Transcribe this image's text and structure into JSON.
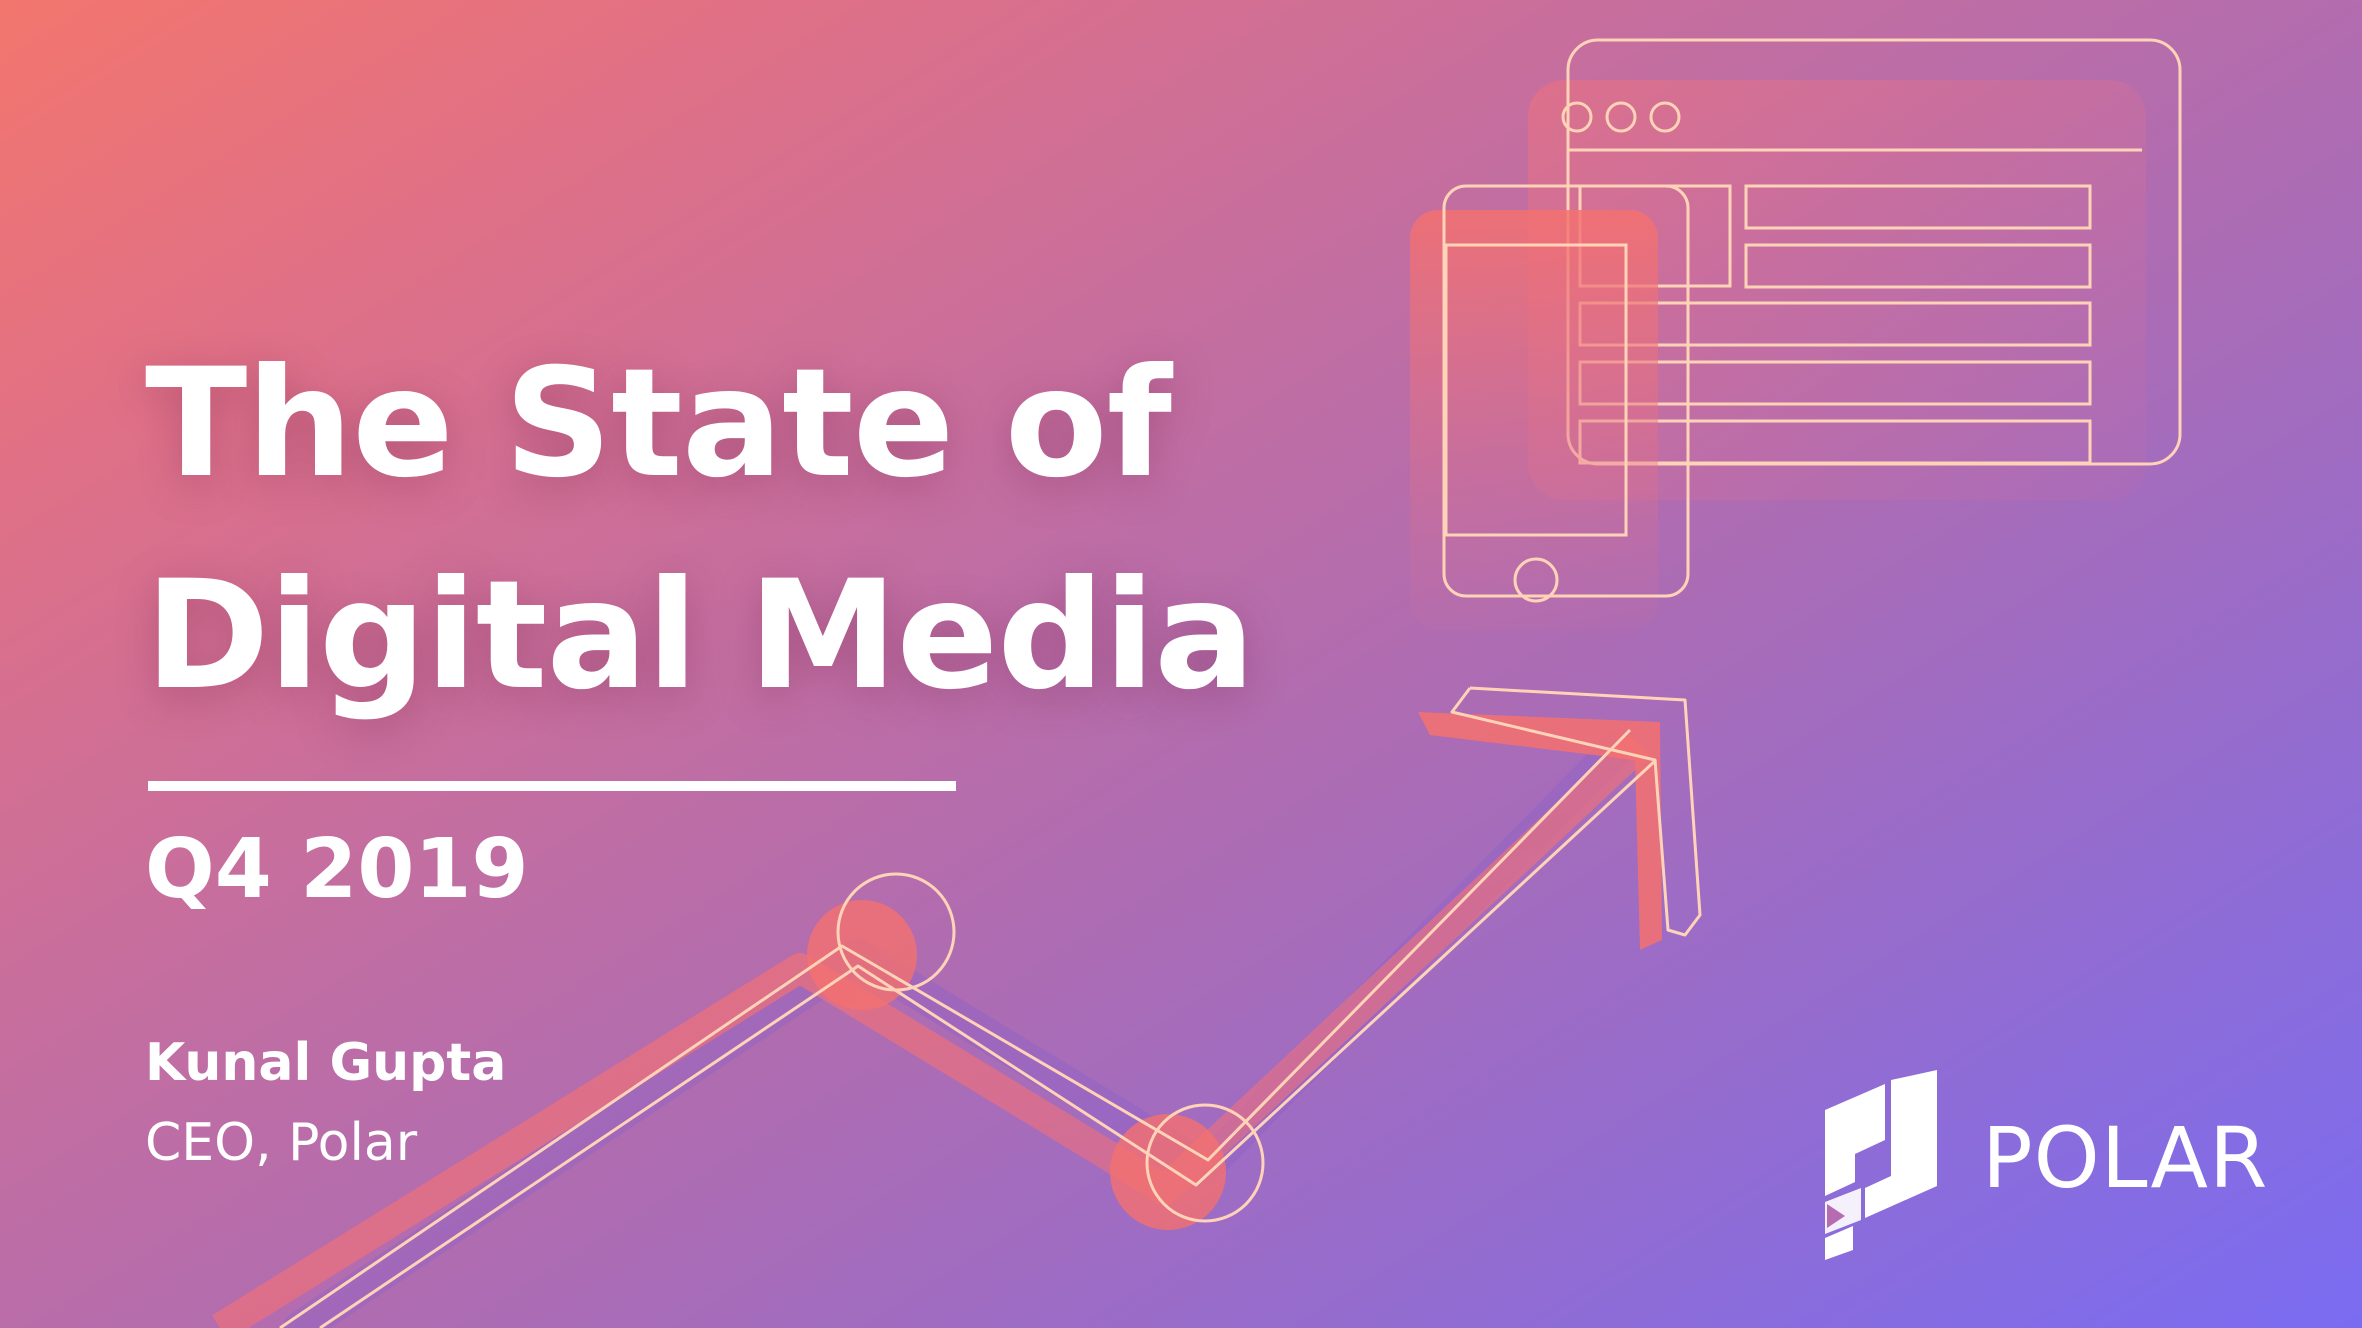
{
  "slide": {
    "title_line1": "The State of",
    "title_line2": "Digital Media",
    "period": "Q4 2019",
    "author_name": "Kunal Gupta",
    "author_role": "CEO, Polar"
  },
  "logo": {
    "wordmark": "POLAR"
  },
  "colors": {
    "gradient_start": "#f3766e",
    "gradient_end": "#7a6cf2",
    "text": "#ffffff",
    "line_art_stroke": "#ffd3b8",
    "accent_fill": "#f4716f"
  },
  "illustration": {
    "icons": [
      "browser-window-icon",
      "smartphone-icon",
      "trend-arrow-icon"
    ]
  }
}
